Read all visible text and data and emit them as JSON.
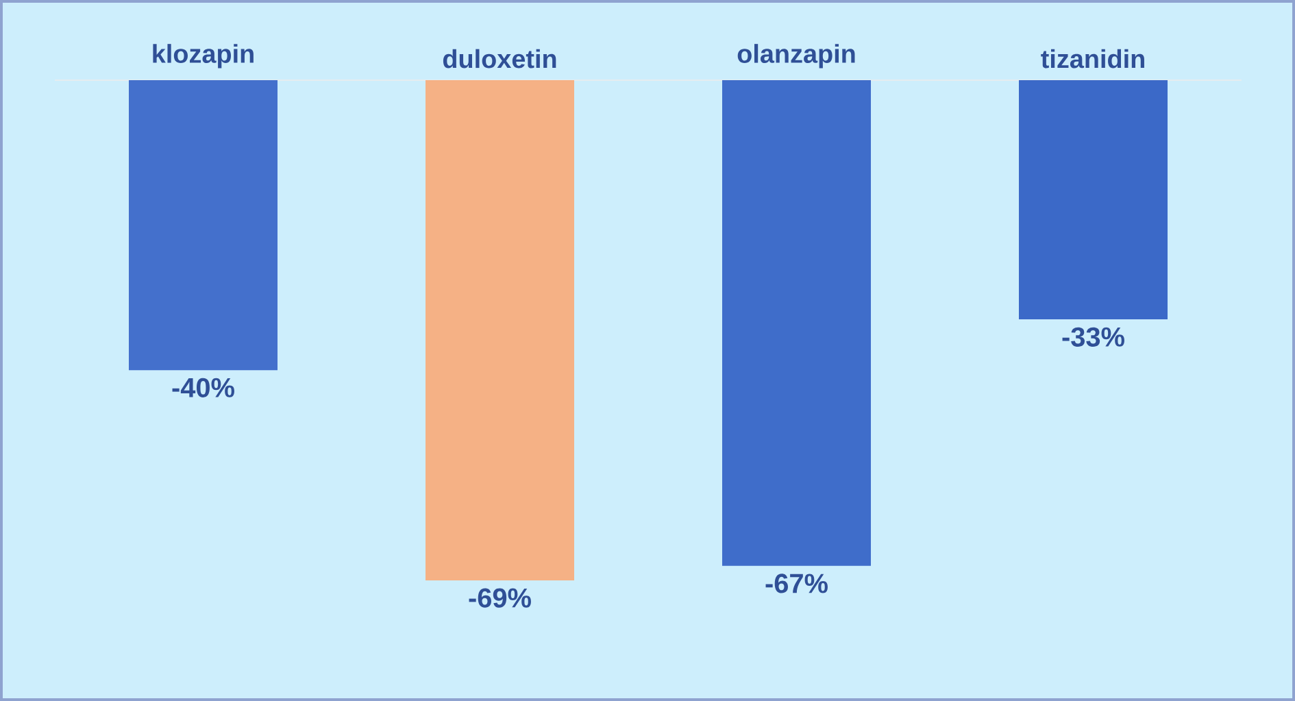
{
  "chart_data": {
    "type": "bar",
    "categories": [
      "klozapin",
      "duloxetin",
      "olanzapin",
      "tizanidin"
    ],
    "values": [
      -40,
      -69,
      -67,
      -33
    ],
    "colors": [
      "#4470cc",
      "#f5b185",
      "#3f6dca",
      "#3b69c8"
    ],
    "value_labels": [
      "-40%",
      "-69%",
      "-67%",
      "-33%"
    ]
  }
}
